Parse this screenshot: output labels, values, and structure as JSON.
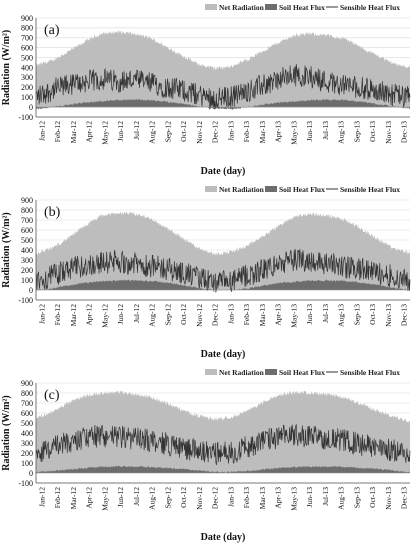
{
  "chart_data": [
    {
      "type": "area",
      "panel_label": "(a)",
      "xlabel": "Date (day)",
      "ylabel": "Radiation (W/m²)",
      "ylim": [
        -100,
        900
      ],
      "yticks": [
        -100,
        0,
        100,
        200,
        300,
        400,
        500,
        600,
        700,
        800,
        900
      ],
      "xticks": [
        "Jan-12",
        "Feb-12",
        "Mar-12",
        "Apr-12",
        "May-12",
        "Jun-12",
        "Jul-12",
        "Aug-12",
        "Sep-12",
        "Oct-12",
        "Nov-12",
        "Dec-12",
        "Jan-13",
        "Feb-13",
        "Mar-13",
        "Apr-13",
        "May-13",
        "Jun-13",
        "Jul-13",
        "Aug-13",
        "Sep-13",
        "Oct-13",
        "Nov-13",
        "Dec-13"
      ],
      "grid": true,
      "legend": "top-right",
      "series": [
        {
          "name": "Net Radiation",
          "style": "area",
          "color": "#bdbdbd",
          "values": [
            420,
            470,
            560,
            660,
            740,
            760,
            740,
            700,
            610,
            520,
            430,
            390,
            410,
            480,
            570,
            660,
            730,
            740,
            720,
            690,
            600,
            520,
            440,
            400
          ]
        },
        {
          "name": "Soil Heat Flux",
          "style": "area",
          "color": "#6d6d6d",
          "values": [
            -20,
            0,
            25,
            45,
            60,
            70,
            75,
            70,
            55,
            35,
            5,
            -15,
            -20,
            0,
            25,
            45,
            60,
            70,
            75,
            70,
            55,
            30,
            5,
            -15
          ]
        },
        {
          "name": "Sensible Heat Flux",
          "style": "line",
          "color": "#333333",
          "values": [
            80,
            150,
            200,
            230,
            260,
            240,
            250,
            220,
            180,
            150,
            100,
            60,
            80,
            140,
            200,
            260,
            300,
            280,
            230,
            200,
            170,
            140,
            100,
            70
          ]
        }
      ]
    },
    {
      "type": "area",
      "panel_label": "(b)",
      "xlabel": "Date (day)",
      "ylabel": "Radiation (W/m²)",
      "ylim": [
        -100,
        900
      ],
      "yticks": [
        -100,
        0,
        100,
        200,
        300,
        400,
        500,
        600,
        700,
        800,
        900
      ],
      "xticks": [
        "Jan-12",
        "Feb-12",
        "Mar-12",
        "Apr-12",
        "May-12",
        "Jun-12",
        "Jul-12",
        "Aug-12",
        "Sep-12",
        "Oct-12",
        "Nov-12",
        "Dec-12",
        "Jan-13",
        "Feb-13",
        "Mar-13",
        "Apr-13",
        "May-13",
        "Jun-13",
        "Jul-13",
        "Aug-13",
        "Sep-13",
        "Oct-13",
        "Nov-13",
        "Dec-13"
      ],
      "grid": true,
      "legend": "top-right",
      "series": [
        {
          "name": "Net Radiation",
          "style": "area",
          "color": "#bdbdbd",
          "values": [
            360,
            420,
            520,
            640,
            740,
            770,
            760,
            720,
            620,
            520,
            420,
            360,
            380,
            440,
            540,
            650,
            740,
            760,
            740,
            700,
            610,
            510,
            420,
            370
          ]
        },
        {
          "name": "Soil Heat Flux",
          "style": "area",
          "color": "#6d6d6d",
          "values": [
            0,
            15,
            45,
            70,
            85,
            95,
            95,
            90,
            75,
            50,
            20,
            0,
            0,
            15,
            45,
            70,
            85,
            95,
            95,
            90,
            75,
            50,
            20,
            0
          ]
        },
        {
          "name": "Sensible Heat Flux",
          "style": "line",
          "color": "#333333",
          "values": [
            60,
            120,
            180,
            220,
            250,
            260,
            240,
            220,
            190,
            150,
            100,
            50,
            60,
            120,
            180,
            240,
            280,
            270,
            240,
            210,
            180,
            150,
            110,
            60
          ]
        }
      ]
    },
    {
      "type": "area",
      "panel_label": "(c)",
      "xlabel": "Date (day)",
      "ylabel": "Radiation (W/m²)",
      "ylim": [
        -100,
        900
      ],
      "yticks": [
        -100,
        0,
        100,
        200,
        300,
        400,
        500,
        600,
        700,
        800,
        900
      ],
      "xticks": [
        "Jan-12",
        "Feb-12",
        "Mar-12",
        "Apr-12",
        "May-12",
        "Jun-12",
        "Jul-12",
        "Aug-12",
        "Sep-12",
        "Oct-12",
        "Nov-12",
        "Dec-12",
        "Jan-13",
        "Feb-13",
        "Mar-13",
        "Apr-13",
        "May-13",
        "Jun-13",
        "Jul-13",
        "Aug-13",
        "Sep-13",
        "Oct-13",
        "Nov-13",
        "Dec-13"
      ],
      "grid": true,
      "legend": "top-right",
      "series": [
        {
          "name": "Net Radiation",
          "style": "area",
          "color": "#bdbdbd",
          "values": [
            550,
            610,
            700,
            770,
            800,
            810,
            790,
            760,
            700,
            630,
            570,
            540,
            560,
            620,
            710,
            780,
            810,
            800,
            780,
            750,
            690,
            620,
            560,
            520
          ]
        },
        {
          "name": "Soil Heat Flux",
          "style": "area",
          "color": "#6d6d6d",
          "values": [
            10,
            20,
            35,
            50,
            60,
            65,
            65,
            60,
            50,
            40,
            25,
            10,
            10,
            20,
            35,
            50,
            60,
            65,
            65,
            60,
            50,
            40,
            25,
            10
          ]
        },
        {
          "name": "Sensible Heat Flux",
          "style": "line",
          "color": "#333333",
          "values": [
            180,
            230,
            280,
            330,
            350,
            340,
            320,
            300,
            270,
            230,
            200,
            170,
            180,
            240,
            300,
            340,
            360,
            340,
            320,
            300,
            260,
            230,
            200,
            170
          ]
        }
      ]
    }
  ]
}
